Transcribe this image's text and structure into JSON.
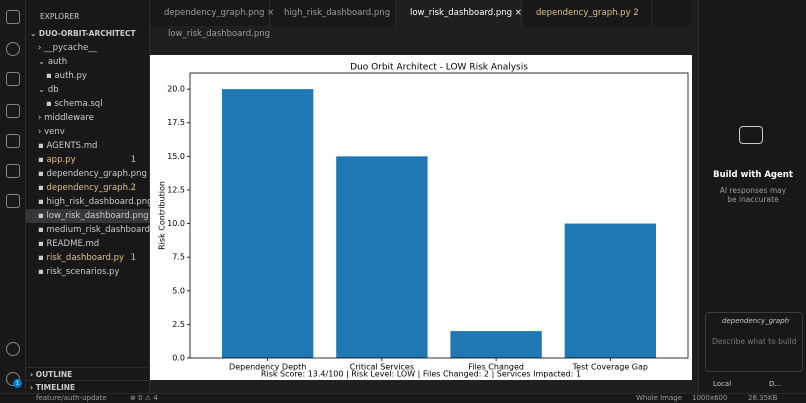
{
  "explorer": {
    "title": "EXPLORER",
    "root": "DUO-ORBIT-ARCHITECT",
    "items": [
      {
        "label": "__pycache__"
      },
      {
        "label": "auth"
      },
      {
        "label": "auth.py"
      },
      {
        "label": "db"
      },
      {
        "label": "schema.sql"
      },
      {
        "label": "middleware"
      },
      {
        "label": "venv"
      },
      {
        "label": "AGENTS.md"
      },
      {
        "label": "app.py",
        "badge": "1"
      },
      {
        "label": "dependency_graph.png"
      },
      {
        "label": "dependency_graph...",
        "badge": "2"
      },
      {
        "label": "high_risk_dashboard.png"
      },
      {
        "label": "low_risk_dashboard.png"
      },
      {
        "label": "medium_risk_dashboard..."
      },
      {
        "label": "README.md"
      },
      {
        "label": "risk_dashboard.py",
        "badge": "1"
      },
      {
        "label": "risk_scenarios.py"
      }
    ],
    "outline": "OUTLINE",
    "timeline": "TIMELINE",
    "badge": "1"
  },
  "tabs": [
    {
      "label": "dependency_graph.png"
    },
    {
      "label": "high_risk_dashboard.png"
    },
    {
      "label": "low_risk_dashboard.png"
    },
    {
      "label": "dependency_graph.py",
      "badge": "2"
    }
  ],
  "breadcrumb": "low_risk_dashboard.png",
  "chart_data": {
    "type": "bar",
    "title": "Duo Orbit Architect - LOW Risk Analysis",
    "y_label": "Risk Contribution",
    "categories": [
      "Dependency Depth",
      "Critical Services",
      "Files Changed",
      "Test Coverage Gap"
    ],
    "values": [
      20,
      15,
      2,
      10
    ],
    "color": "#1f77b4",
    "ylim": [
      0,
      21.2
    ],
    "yticks": [
      {
        "value": 0,
        "label": "0.0"
      },
      {
        "value": 2.5,
        "label": "2.5"
      },
      {
        "value": 5,
        "label": "5.0"
      },
      {
        "value": 7.5,
        "label": "7.5"
      },
      {
        "value": 10,
        "label": "10.0"
      },
      {
        "value": 12.5,
        "label": "12.5"
      },
      {
        "value": 15,
        "label": "15.0"
      },
      {
        "value": 17.5,
        "label": "17.5"
      },
      {
        "value": 20,
        "label": "20.0"
      }
    ],
    "footnote": "Risk Score: 13.4/100 | Risk Level: LOW | Files Changed: 2 | Services Impacted: 1"
  },
  "agent": {
    "title": "Build with Agent",
    "subtitle": "AI responses may be inaccurate",
    "chip": "dependency_graph",
    "placeholder": "Describe what to build",
    "mode": "Local",
    "model": "D..."
  },
  "status": {
    "branch": "feature/auth-update",
    "errors": "0",
    "warnings": "4",
    "view": "Whole Image",
    "size": "1000x600",
    "file_size": "26.35KB"
  }
}
